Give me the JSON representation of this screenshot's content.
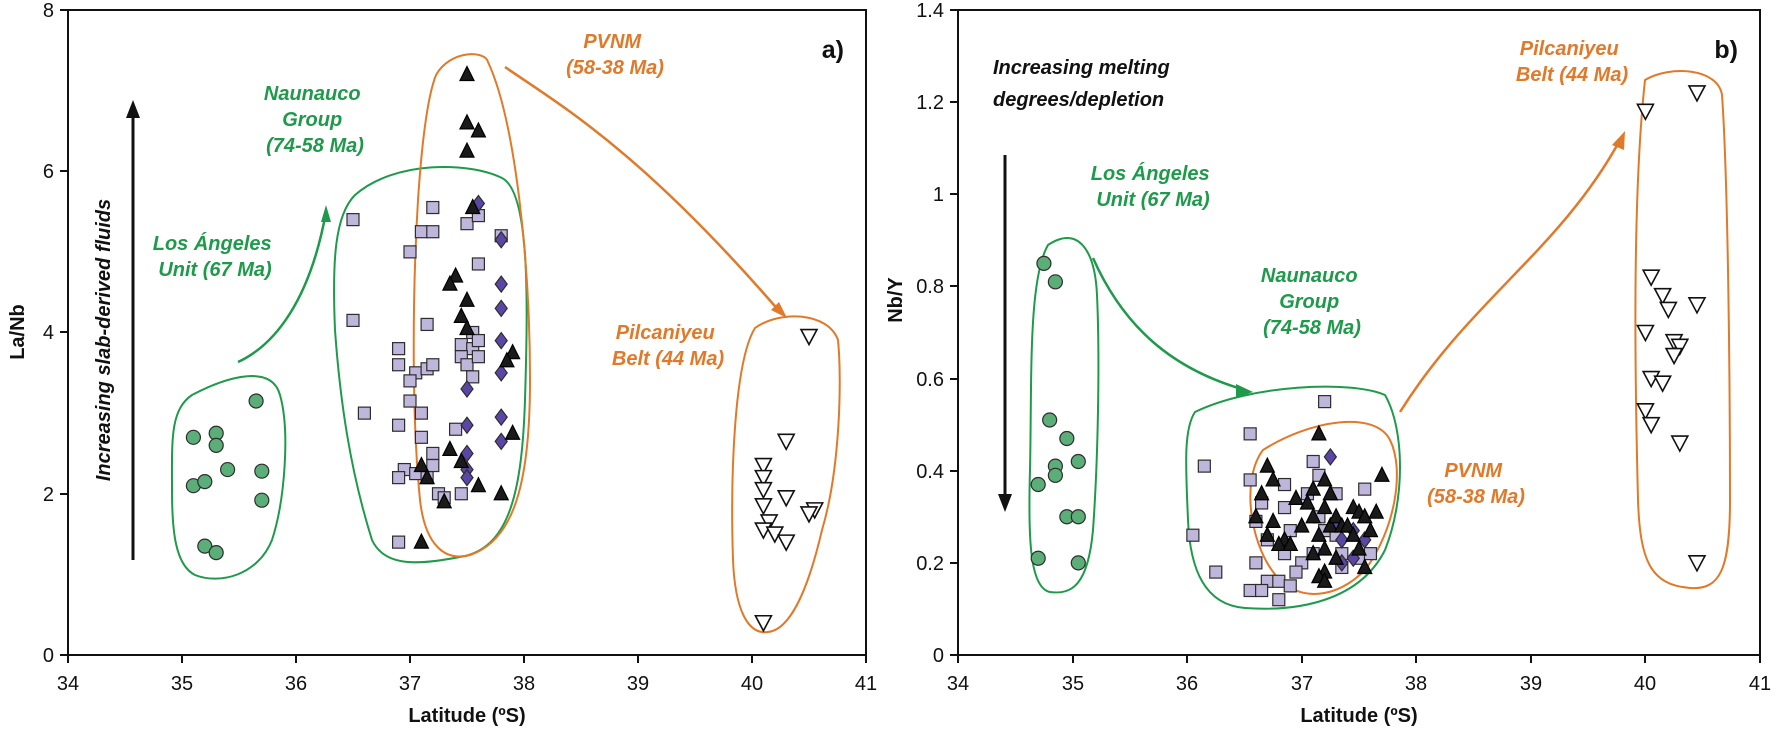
{
  "colors": {
    "green": "#1e9a4a",
    "orange": "#e07a2a",
    "circle_fill": "#5cae79",
    "square_fill": "#bfb6dc",
    "diamond_fill": "#5b46a6",
    "triangle_fill": "#1a1a1a",
    "axis": "#111111"
  },
  "chart_data": [
    {
      "type": "scatter",
      "panel_label": "a)",
      "xlabel": "Latitude (ºS)",
      "ylabel": "La/Nb",
      "xlim": [
        34,
        41
      ],
      "ylim": [
        0,
        8
      ],
      "x_ticks": [
        "34",
        "35",
        "36",
        "37",
        "38",
        "39",
        "40",
        "41"
      ],
      "y_ticks": [
        "0",
        "2",
        "4",
        "6",
        "8"
      ],
      "grid": false,
      "annotations": [
        {
          "lines": [
            "Naunauco",
            "Group",
            "(74-58 Ma)"
          ],
          "color": "green"
        },
        {
          "lines": [
            "PVNM",
            "(58-38 Ma)"
          ],
          "color": "orange"
        },
        {
          "lines": [
            "Los Ángeles",
            "Unit (67 Ma)"
          ],
          "color": "green"
        },
        {
          "lines": [
            "Pilcaniyeu",
            "Belt (44 Ma)"
          ],
          "color": "orange"
        },
        {
          "lines": [
            "Increasing slab-derived fluids"
          ],
          "color": "black"
        }
      ],
      "series": [
        {
          "marker": "circle",
          "points": [
            [
              35.1,
              2.7
            ],
            [
              35.3,
              2.75
            ],
            [
              35.3,
              2.6
            ],
            [
              35.65,
              3.15
            ],
            [
              35.4,
              2.3
            ],
            [
              35.1,
              2.1
            ],
            [
              35.2,
              2.15
            ],
            [
              35.7,
              2.28
            ],
            [
              35.7,
              1.92
            ],
            [
              35.2,
              1.35
            ],
            [
              35.3,
              1.27
            ]
          ]
        },
        {
          "marker": "square",
          "points": [
            [
              36.5,
              5.4
            ],
            [
              36.5,
              4.15
            ],
            [
              36.6,
              3.0
            ],
            [
              36.9,
              3.8
            ],
            [
              36.9,
              3.6
            ],
            [
              37.0,
              5.0
            ],
            [
              37.1,
              5.25
            ],
            [
              37.2,
              5.25
            ],
            [
              37.2,
              5.55
            ],
            [
              37.15,
              4.1
            ],
            [
              37.05,
              3.5
            ],
            [
              37.15,
              3.55
            ],
            [
              37.2,
              3.6
            ],
            [
              37.0,
              3.4
            ],
            [
              37.0,
              3.15
            ],
            [
              37.1,
              3.0
            ],
            [
              36.9,
              2.85
            ],
            [
              37.1,
              2.7
            ],
            [
              37.2,
              2.5
            ],
            [
              37.2,
              2.35
            ],
            [
              36.95,
              2.3
            ],
            [
              37.05,
              2.25
            ],
            [
              36.9,
              2.2
            ],
            [
              37.15,
              2.2
            ],
            [
              37.25,
              2.0
            ],
            [
              37.3,
              1.95
            ],
            [
              37.45,
              2.0
            ],
            [
              36.9,
              1.4
            ],
            [
              37.5,
              5.35
            ],
            [
              37.6,
              5.45
            ],
            [
              37.6,
              4.85
            ],
            [
              37.55,
              4.0
            ],
            [
              37.45,
              3.85
            ],
            [
              37.55,
              3.8
            ],
            [
              37.6,
              3.9
            ],
            [
              37.45,
              3.7
            ],
            [
              37.5,
              3.6
            ],
            [
              37.6,
              3.7
            ],
            [
              37.55,
              3.45
            ],
            [
              37.4,
              2.8
            ],
            [
              37.8,
              5.2
            ]
          ]
        },
        {
          "marker": "diamond",
          "points": [
            [
              37.6,
              5.6
            ],
            [
              37.8,
              5.15
            ],
            [
              37.8,
              4.6
            ],
            [
              37.8,
              4.3
            ],
            [
              37.8,
              3.9
            ],
            [
              37.8,
              3.5
            ],
            [
              37.5,
              3.3
            ],
            [
              37.8,
              2.95
            ],
            [
              37.5,
              2.85
            ],
            [
              37.8,
              2.65
            ],
            [
              37.5,
              2.5
            ],
            [
              37.5,
              2.3
            ],
            [
              37.5,
              2.2
            ]
          ]
        },
        {
          "marker": "triangle",
          "points": [
            [
              37.5,
              7.2
            ],
            [
              37.5,
              6.6
            ],
            [
              37.6,
              6.5
            ],
            [
              37.5,
              6.25
            ],
            [
              37.4,
              4.7
            ],
            [
              37.35,
              4.6
            ],
            [
              37.5,
              4.4
            ],
            [
              37.45,
              4.2
            ],
            [
              37.5,
              4.05
            ],
            [
              37.55,
              5.55
            ],
            [
              37.9,
              3.75
            ],
            [
              37.85,
              3.65
            ],
            [
              37.9,
              2.75
            ],
            [
              37.45,
              2.4
            ],
            [
              37.1,
              2.35
            ],
            [
              37.15,
              2.2
            ],
            [
              37.6,
              2.1
            ],
            [
              37.3,
              1.9
            ],
            [
              37.8,
              2.0
            ],
            [
              37.1,
              1.4
            ],
            [
              37.35,
              2.55
            ]
          ]
        },
        {
          "marker": "triangle-down",
          "points": [
            [
              40.5,
              3.95
            ],
            [
              40.3,
              2.65
            ],
            [
              40.1,
              2.35
            ],
            [
              40.1,
              2.2
            ],
            [
              40.1,
              2.05
            ],
            [
              40.3,
              1.95
            ],
            [
              40.1,
              1.85
            ],
            [
              40.55,
              1.8
            ],
            [
              40.5,
              1.75
            ],
            [
              40.15,
              1.65
            ],
            [
              40.1,
              1.55
            ],
            [
              40.2,
              1.5
            ],
            [
              40.3,
              1.4
            ],
            [
              40.1,
              0.4
            ]
          ]
        }
      ]
    },
    {
      "type": "scatter",
      "panel_label": "b)",
      "xlabel": "Latitude (ºS)",
      "ylabel": "Nb/Y",
      "xlim": [
        34,
        41
      ],
      "ylim": [
        0,
        1.4
      ],
      "x_ticks": [
        "34",
        "35",
        "36",
        "37",
        "38",
        "39",
        "40",
        "41"
      ],
      "y_ticks": [
        "0",
        "0.2",
        "0.4",
        "0.6",
        "0.8",
        "1",
        "1.2",
        "1.4"
      ],
      "grid": false,
      "annotations": [
        {
          "lines": [
            "Increasing melting",
            "degrees/depletion"
          ],
          "color": "black"
        },
        {
          "lines": [
            "Los Ángeles",
            "Unit (67 Ma)"
          ],
          "color": "green"
        },
        {
          "lines": [
            "Naunauco",
            "Group",
            "(74-58 Ma)"
          ],
          "color": "green"
        },
        {
          "lines": [
            "Pilcaniyeu",
            "Belt (44 Ma)"
          ],
          "color": "orange"
        },
        {
          "lines": [
            "PVNM",
            "(58-38 Ma)"
          ],
          "color": "orange"
        }
      ],
      "series": [
        {
          "marker": "circle",
          "points": [
            [
              34.75,
              0.85
            ],
            [
              34.85,
              0.81
            ],
            [
              34.8,
              0.51
            ],
            [
              34.95,
              0.47
            ],
            [
              34.85,
              0.41
            ],
            [
              35.05,
              0.42
            ],
            [
              34.85,
              0.39
            ],
            [
              34.7,
              0.37
            ],
            [
              34.95,
              0.3
            ],
            [
              35.05,
              0.3
            ],
            [
              34.7,
              0.21
            ],
            [
              35.05,
              0.2
            ]
          ]
        },
        {
          "marker": "square",
          "points": [
            [
              36.15,
              0.41
            ],
            [
              36.05,
              0.26
            ],
            [
              36.25,
              0.18
            ],
            [
              36.55,
              0.48
            ],
            [
              36.55,
              0.38
            ],
            [
              36.65,
              0.33
            ],
            [
              36.6,
              0.29
            ],
            [
              36.7,
              0.25
            ],
            [
              36.6,
              0.2
            ],
            [
              36.7,
              0.16
            ],
            [
              36.55,
              0.14
            ],
            [
              36.65,
              0.14
            ],
            [
              36.8,
              0.12
            ],
            [
              36.8,
              0.16
            ],
            [
              36.85,
              0.37
            ],
            [
              36.85,
              0.32
            ],
            [
              36.9,
              0.27
            ],
            [
              36.85,
              0.22
            ],
            [
              36.9,
              0.15
            ],
            [
              37.05,
              0.35
            ],
            [
              37.1,
              0.42
            ],
            [
              37.15,
              0.39
            ],
            [
              37.15,
              0.3
            ],
            [
              37.2,
              0.27
            ],
            [
              37.2,
              0.55
            ],
            [
              37.3,
              0.35
            ],
            [
              37.3,
              0.26
            ],
            [
              37.35,
              0.22
            ],
            [
              37.5,
              0.21
            ],
            [
              37.6,
              0.22
            ],
            [
              37.35,
              0.19
            ],
            [
              37.1,
              0.22
            ],
            [
              37.0,
              0.2
            ],
            [
              36.95,
              0.18
            ],
            [
              37.55,
              0.36
            ]
          ]
        },
        {
          "marker": "diamond",
          "points": [
            [
              37.25,
              0.43
            ],
            [
              37.3,
              0.29
            ],
            [
              37.35,
              0.25
            ],
            [
              37.45,
              0.27
            ],
            [
              37.35,
              0.2
            ],
            [
              37.55,
              0.25
            ],
            [
              37.45,
              0.21
            ]
          ]
        },
        {
          "marker": "triangle",
          "points": [
            [
              36.7,
              0.41
            ],
            [
              36.75,
              0.38
            ],
            [
              36.65,
              0.35
            ],
            [
              36.6,
              0.3
            ],
            [
              36.75,
              0.29
            ],
            [
              36.7,
              0.26
            ],
            [
              36.85,
              0.25
            ],
            [
              36.8,
              0.24
            ],
            [
              36.9,
              0.24
            ],
            [
              36.95,
              0.34
            ],
            [
              37.05,
              0.33
            ],
            [
              37.1,
              0.36
            ],
            [
              37.15,
              0.48
            ],
            [
              37.2,
              0.38
            ],
            [
              37.25,
              0.35
            ],
            [
              37.2,
              0.32
            ],
            [
              37.1,
              0.3
            ],
            [
              37.25,
              0.28
            ],
            [
              37.3,
              0.3
            ],
            [
              37.35,
              0.28
            ],
            [
              37.15,
              0.26
            ],
            [
              37.2,
              0.23
            ],
            [
              37.3,
              0.21
            ],
            [
              37.2,
              0.18
            ],
            [
              37.15,
              0.17
            ],
            [
              37.2,
              0.16
            ],
            [
              37.4,
              0.28
            ],
            [
              37.45,
              0.32
            ],
            [
              37.5,
              0.31
            ],
            [
              37.45,
              0.26
            ],
            [
              37.5,
              0.23
            ],
            [
              37.55,
              0.3
            ],
            [
              37.6,
              0.27
            ],
            [
              37.65,
              0.31
            ],
            [
              37.7,
              0.39
            ],
            [
              37.55,
              0.19
            ],
            [
              37.1,
              0.22
            ],
            [
              37.0,
              0.28
            ]
          ]
        },
        {
          "marker": "triangle-down",
          "points": [
            [
              40.0,
              1.18
            ],
            [
              40.45,
              1.22
            ],
            [
              40.05,
              0.82
            ],
            [
              40.15,
              0.78
            ],
            [
              40.2,
              0.75
            ],
            [
              40.45,
              0.76
            ],
            [
              40.0,
              0.7
            ],
            [
              40.25,
              0.68
            ],
            [
              40.3,
              0.67
            ],
            [
              40.25,
              0.65
            ],
            [
              40.05,
              0.6
            ],
            [
              40.15,
              0.59
            ],
            [
              40.0,
              0.53
            ],
            [
              40.05,
              0.5
            ],
            [
              40.3,
              0.46
            ],
            [
              40.45,
              0.2
            ]
          ]
        }
      ]
    }
  ]
}
